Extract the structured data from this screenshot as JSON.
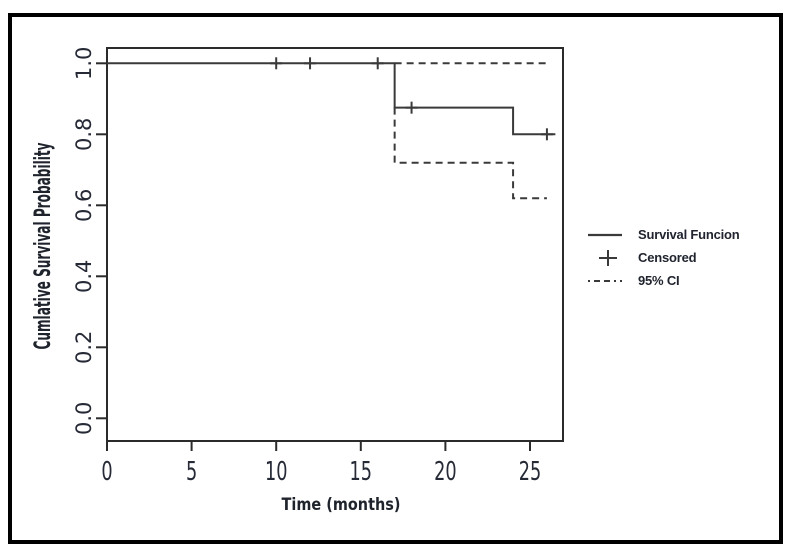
{
  "page": {
    "background_color": "#ffffff",
    "frame_color": "#000000",
    "line_color": "#3a3a3a",
    "text_color": "#262a36"
  },
  "chart_data": {
    "type": "line",
    "chart_kind": "kaplan-meier-step",
    "title": "",
    "xlabel": "Time (months)",
    "ylabel": "Cumlative Survival Probability",
    "x_ticks": [
      "0",
      "5",
      "10",
      "15",
      "20",
      "25"
    ],
    "y_ticks": [
      "0.0",
      "0.2",
      "0.4",
      "0.6",
      "0.8",
      "1.0"
    ],
    "xlim": [
      0,
      27
    ],
    "ylim": [
      -0.04,
      1.04
    ],
    "grid": false,
    "legend_position": "right-outside",
    "series": [
      {
        "name": "Survival Funcion",
        "style": "solid",
        "steps": [
          {
            "t": 0,
            "s": 1.0
          },
          {
            "t": 17,
            "s": 0.875
          },
          {
            "t": 24,
            "s": 0.8
          }
        ],
        "end_t": 26.5
      },
      {
        "name": "95% CI upper",
        "style": "dashed",
        "steps": [
          {
            "t": 17,
            "s": 1.0
          }
        ],
        "end_t": 26
      },
      {
        "name": "95% CI lower",
        "style": "dashed",
        "start": {
          "t": 17,
          "s": 0.875
        },
        "steps": [
          {
            "t": 17,
            "s": 0.72
          },
          {
            "t": 24,
            "s": 0.62
          }
        ],
        "end_t": 26
      }
    ],
    "censored": [
      {
        "t": 10,
        "s": 1.0
      },
      {
        "t": 12,
        "s": 1.0
      },
      {
        "t": 16,
        "s": 1.0
      },
      {
        "t": 18,
        "s": 0.875
      },
      {
        "t": 26,
        "s": 0.8
      }
    ]
  },
  "legend": {
    "items": [
      {
        "label": "Survival Funcion",
        "marker": "solid-line"
      },
      {
        "label": "Censored",
        "marker": "plus"
      },
      {
        "label": "95% CI",
        "marker": "dashed-line"
      }
    ]
  }
}
